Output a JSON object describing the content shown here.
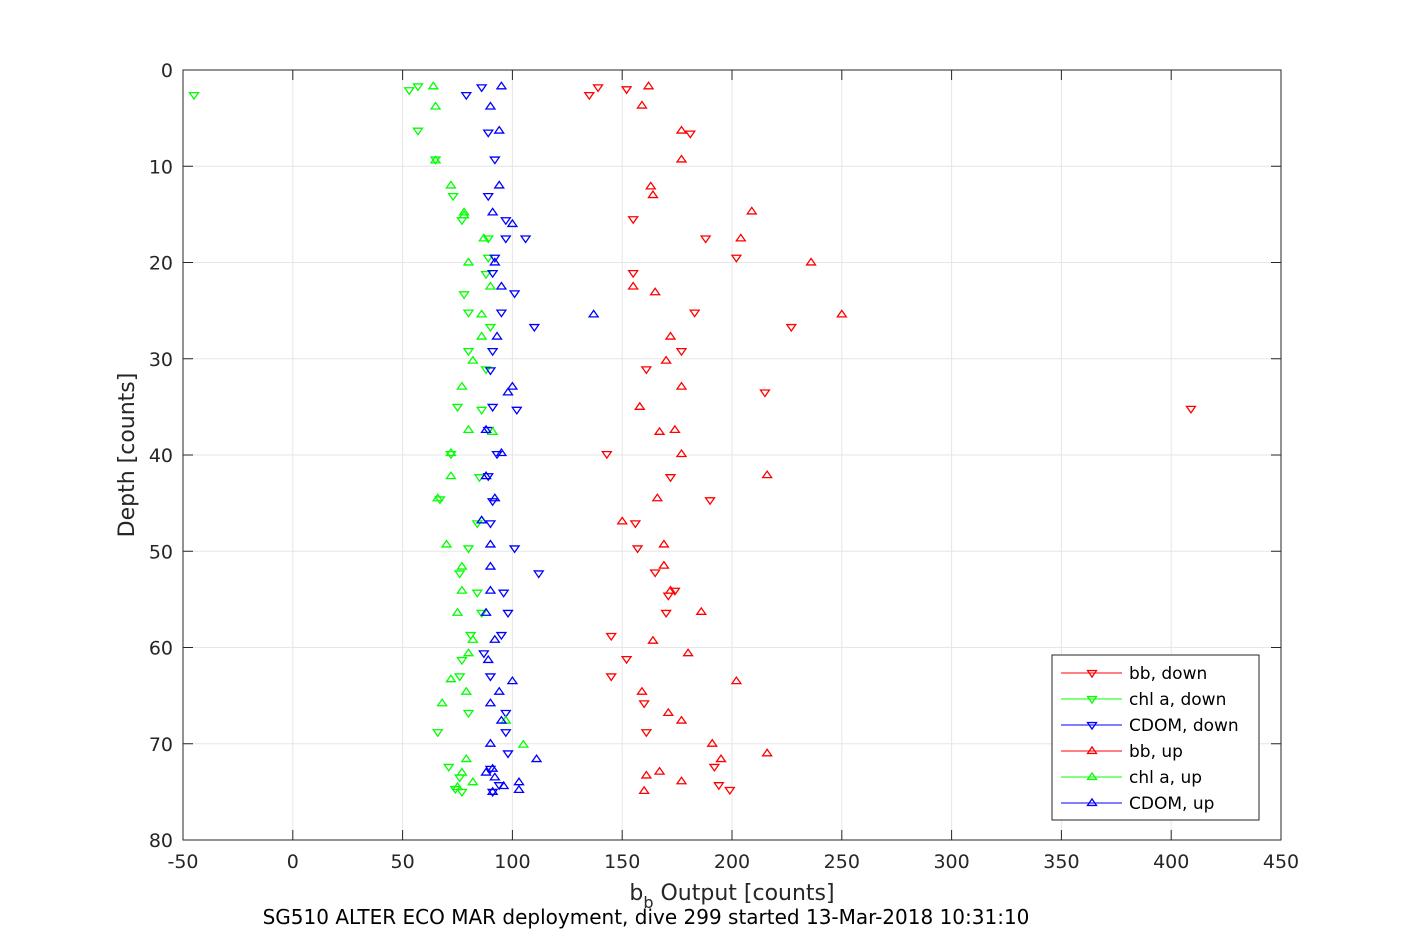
{
  "caption": "SG510 ALTER ECO MAR deployment, dive 299 started 13-Mar-2018 10:31:10",
  "chart_data": {
    "type": "scatter",
    "title": "",
    "xlabel_main": "b",
    "xlabel_sub": "b",
    "xlabel_rest": " Output [counts]",
    "ylabel": "Depth [counts]",
    "xlim": [
      -50,
      450
    ],
    "ylim": [
      0,
      80
    ],
    "y_reversed": true,
    "grid": true,
    "legend_position": "bottom-right",
    "x_ticks": [
      -50,
      0,
      50,
      100,
      150,
      200,
      250,
      300,
      350,
      400,
      450
    ],
    "x_tick_labels": [
      "-50",
      "0",
      "50",
      "100",
      "150",
      "200",
      "250",
      "300",
      "350",
      "400",
      "450"
    ],
    "y_ticks": [
      0,
      10,
      20,
      30,
      40,
      50,
      60,
      70,
      80
    ],
    "y_tick_labels": [
      "0",
      "10",
      "20",
      "30",
      "40",
      "50",
      "60",
      "70",
      "80"
    ],
    "series": [
      {
        "name": "bb, down",
        "color": "#ff0000",
        "marker": "triangle-down",
        "points": [
          [
            139,
            1.8
          ],
          [
            135,
            2.6
          ],
          [
            152,
            2.0
          ],
          [
            181,
            6.6
          ],
          [
            155,
            15.5
          ],
          [
            188,
            17.5
          ],
          [
            202,
            19.5
          ],
          [
            155,
            21.1
          ],
          [
            183,
            25.2
          ],
          [
            227,
            26.7
          ],
          [
            177,
            29.2
          ],
          [
            161,
            31.1
          ],
          [
            215,
            33.5
          ],
          [
            409,
            35.2
          ],
          [
            143,
            39.9
          ],
          [
            172,
            42.3
          ],
          [
            190,
            44.7
          ],
          [
            156,
            47.1
          ],
          [
            157,
            49.7
          ],
          [
            165,
            52.2
          ],
          [
            171,
            54.6
          ],
          [
            170,
            56.4
          ],
          [
            145,
            58.8
          ],
          [
            152,
            61.2
          ],
          [
            145,
            63.0
          ],
          [
            160,
            65.8
          ],
          [
            161,
            68.8
          ],
          [
            192,
            72.4
          ],
          [
            194,
            74.3
          ],
          [
            199,
            74.8
          ],
          [
            174,
            54.1
          ]
        ]
      },
      {
        "name": "chl a, down",
        "color": "#00ff00",
        "marker": "triangle-down",
        "points": [
          [
            57,
            1.7
          ],
          [
            53,
            2.1
          ],
          [
            -45,
            2.6
          ],
          [
            57,
            6.3
          ],
          [
            65,
            9.3
          ],
          [
            73,
            13.1
          ],
          [
            77,
            15.6
          ],
          [
            89,
            17.5
          ],
          [
            89,
            19.5
          ],
          [
            88,
            21.2
          ],
          [
            78,
            23.3
          ],
          [
            80,
            25.2
          ],
          [
            90,
            26.7
          ],
          [
            80,
            29.2
          ],
          [
            88,
            31.1
          ],
          [
            75,
            35.0
          ],
          [
            86,
            35.3
          ],
          [
            72,
            39.9
          ],
          [
            85,
            42.3
          ],
          [
            67,
            44.6
          ],
          [
            84,
            47.1
          ],
          [
            80,
            49.7
          ],
          [
            76,
            52.3
          ],
          [
            84,
            54.3
          ],
          [
            86,
            56.4
          ],
          [
            81,
            58.7
          ],
          [
            77,
            61.3
          ],
          [
            76,
            63.0
          ],
          [
            80,
            66.8
          ],
          [
            66,
            68.8
          ],
          [
            71,
            72.4
          ],
          [
            76,
            73.5
          ],
          [
            74,
            74.7
          ],
          [
            77,
            75.0
          ]
        ]
      },
      {
        "name": "CDOM, down",
        "color": "#0000ff",
        "marker": "triangle-down",
        "points": [
          [
            86,
            1.8
          ],
          [
            79,
            2.6
          ],
          [
            89,
            6.5
          ],
          [
            92,
            9.3
          ],
          [
            89,
            13.1
          ],
          [
            97,
            15.6
          ],
          [
            97,
            17.5
          ],
          [
            106,
            17.5
          ],
          [
            92,
            19.5
          ],
          [
            91,
            21.1
          ],
          [
            101,
            23.2
          ],
          [
            95,
            25.2
          ],
          [
            110,
            26.7
          ],
          [
            91,
            29.2
          ],
          [
            90,
            31.2
          ],
          [
            91,
            35.0
          ],
          [
            102,
            35.3
          ],
          [
            89,
            37.4
          ],
          [
            93,
            39.9
          ],
          [
            89,
            42.2
          ],
          [
            91,
            44.8
          ],
          [
            90,
            47.1
          ],
          [
            101,
            49.7
          ],
          [
            112,
            52.3
          ],
          [
            96,
            54.3
          ],
          [
            98,
            56.4
          ],
          [
            95,
            58.7
          ],
          [
            87,
            60.6
          ],
          [
            90,
            63.0
          ],
          [
            97,
            66.8
          ],
          [
            97,
            68.8
          ],
          [
            98,
            71.0
          ],
          [
            90,
            72.6
          ],
          [
            94,
            74.3
          ],
          [
            91,
            75.0
          ]
        ]
      },
      {
        "name": "bb, up",
        "color": "#ff0000",
        "marker": "triangle-up",
        "points": [
          [
            162,
            1.7
          ],
          [
            159,
            3.7
          ],
          [
            177,
            6.3
          ],
          [
            177,
            9.3
          ],
          [
            163,
            12.1
          ],
          [
            164,
            13.0
          ],
          [
            209,
            14.7
          ],
          [
            204,
            17.5
          ],
          [
            236,
            20.0
          ],
          [
            155,
            22.5
          ],
          [
            165,
            23.1
          ],
          [
            250,
            25.4
          ],
          [
            172,
            27.7
          ],
          [
            170,
            30.2
          ],
          [
            177,
            32.9
          ],
          [
            158,
            35.0
          ],
          [
            174,
            37.4
          ],
          [
            167,
            37.6
          ],
          [
            177,
            39.9
          ],
          [
            216,
            42.1
          ],
          [
            166,
            44.5
          ],
          [
            150,
            46.9
          ],
          [
            169,
            49.3
          ],
          [
            169,
            51.5
          ],
          [
            172,
            54.1
          ],
          [
            186,
            56.3
          ],
          [
            164,
            59.3
          ],
          [
            180,
            60.6
          ],
          [
            202,
            63.5
          ],
          [
            159,
            64.6
          ],
          [
            171,
            66.8
          ],
          [
            177,
            67.6
          ],
          [
            191,
            70.0
          ],
          [
            195,
            71.6
          ],
          [
            216,
            71.0
          ],
          [
            167,
            72.9
          ],
          [
            161,
            73.3
          ],
          [
            177,
            73.9
          ],
          [
            160,
            74.9
          ]
        ]
      },
      {
        "name": "chl a, up",
        "color": "#00ff00",
        "marker": "triangle-up",
        "points": [
          [
            64,
            1.7
          ],
          [
            65,
            3.8
          ],
          [
            65,
            9.4
          ],
          [
            72,
            12.0
          ],
          [
            78,
            14.8
          ],
          [
            78,
            15.1
          ],
          [
            87,
            17.5
          ],
          [
            80,
            20.0
          ],
          [
            90,
            22.5
          ],
          [
            86,
            25.4
          ],
          [
            86,
            27.7
          ],
          [
            82,
            30.2
          ],
          [
            77,
            32.9
          ],
          [
            80,
            37.4
          ],
          [
            91,
            37.6
          ],
          [
            72,
            39.8
          ],
          [
            72,
            42.2
          ],
          [
            66,
            44.5
          ],
          [
            86,
            46.8
          ],
          [
            70,
            49.3
          ],
          [
            77,
            51.6
          ],
          [
            77,
            54.1
          ],
          [
            75,
            56.4
          ],
          [
            82,
            59.2
          ],
          [
            80,
            60.6
          ],
          [
            72,
            63.3
          ],
          [
            79,
            64.6
          ],
          [
            68,
            65.8
          ],
          [
            97,
            67.6
          ],
          [
            105,
            70.1
          ],
          [
            79,
            71.6
          ],
          [
            82,
            74.0
          ],
          [
            77,
            73.0
          ],
          [
            75,
            74.5
          ]
        ]
      },
      {
        "name": "CDOM, up",
        "color": "#0000ff",
        "marker": "triangle-up",
        "points": [
          [
            95,
            1.7
          ],
          [
            90,
            3.8
          ],
          [
            94,
            6.3
          ],
          [
            94,
            12.0
          ],
          [
            91,
            14.8
          ],
          [
            100,
            16.0
          ],
          [
            92,
            20.0
          ],
          [
            95,
            22.5
          ],
          [
            137,
            25.4
          ],
          [
            93,
            27.7
          ],
          [
            100,
            32.9
          ],
          [
            98,
            33.5
          ],
          [
            88,
            37.4
          ],
          [
            95,
            39.8
          ],
          [
            88,
            42.2
          ],
          [
            92,
            44.5
          ],
          [
            86,
            46.8
          ],
          [
            90,
            49.3
          ],
          [
            90,
            51.6
          ],
          [
            90,
            54.1
          ],
          [
            88,
            56.4
          ],
          [
            92,
            59.2
          ],
          [
            89,
            61.3
          ],
          [
            100,
            63.5
          ],
          [
            94,
            64.6
          ],
          [
            90,
            65.8
          ],
          [
            95,
            67.6
          ],
          [
            90,
            70.0
          ],
          [
            111,
            71.6
          ],
          [
            91,
            72.6
          ],
          [
            88,
            73.0
          ],
          [
            92,
            73.5
          ],
          [
            96,
            74.4
          ],
          [
            103,
            74.0
          ],
          [
            103,
            74.8
          ],
          [
            91,
            75.0
          ]
        ]
      }
    ]
  }
}
